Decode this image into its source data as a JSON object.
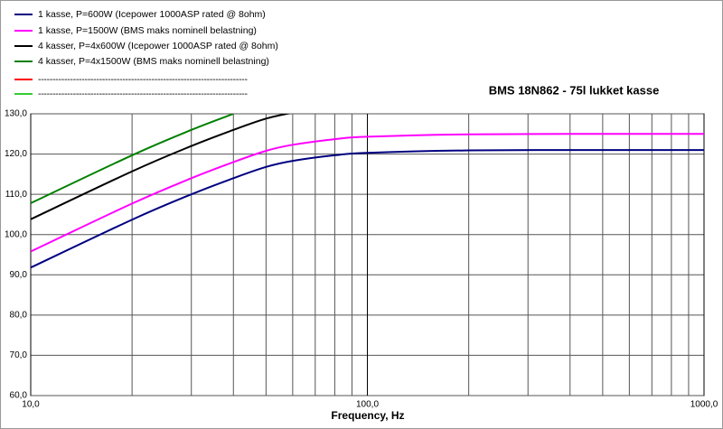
{
  "chart_data": {
    "type": "line",
    "title": "BMS 18N862 - 75l lukket kasse",
    "x_label": "Frequency, Hz",
    "log_x": true,
    "grid": true,
    "x": [
      10,
      20,
      30,
      40,
      50,
      60,
      80,
      100,
      200,
      500,
      1000
    ],
    "series": [
      {
        "name": "1 kasse, P=600W (Icepower 1000ASP rated @ 8ohm)",
        "color": "#000080",
        "values": [
          91.8,
          103.7,
          110,
          114,
          116.8,
          118.3,
          119.7,
          120.3,
          120.9,
          121,
          121
        ]
      },
      {
        "name": "1 kasse, P=1500W (BMS maks nominell belastning)",
        "color": "#ff00ff",
        "values": [
          95.8,
          107.7,
          114,
          118,
          120.8,
          122.3,
          123.7,
          124.3,
          124.9,
          125,
          125
        ]
      },
      {
        "name": "4 kasser, P=4x600W (Icepower 1000ASP rated @ 8ohm)",
        "color": "#000000",
        "values": [
          103.8,
          115.7,
          122,
          126,
          128.8,
          130.3,
          null,
          null,
          null,
          null,
          null
        ]
      },
      {
        "name": "4 kasser, P=4x1500W (BMS maks nominell belastning)",
        "color": "#008000",
        "values": [
          107.8,
          119.7,
          126,
          130,
          null,
          null,
          null,
          null,
          null,
          null,
          null
        ]
      },
      {
        "name": "------------------------------------------------------------------------",
        "color": "#ff0000",
        "values": [
          null,
          null,
          null,
          null,
          null,
          null,
          null,
          null,
          null,
          null,
          null
        ]
      },
      {
        "name": "------------------------------------------------------------------------",
        "color": "#33cc33",
        "values": [
          null,
          null,
          null,
          null,
          null,
          null,
          null,
          null,
          null,
          null,
          null
        ]
      }
    ],
    "xlim": [
      10,
      1000
    ],
    "xticks": [
      {
        "value": 10,
        "label": "10,0"
      },
      {
        "value": 100,
        "label": "100,0"
      },
      {
        "value": 1000,
        "label": "1000,0"
      }
    ],
    "x_minor_ticks": [
      20,
      30,
      40,
      50,
      60,
      70,
      80,
      90,
      200,
      300,
      400,
      500,
      600,
      700,
      800,
      900
    ],
    "ylim": [
      60,
      130
    ],
    "yticks": [
      {
        "value": 60,
        "label": "60,0"
      },
      {
        "value": 70,
        "label": "70,0"
      },
      {
        "value": 80,
        "label": "80,0"
      },
      {
        "value": 90,
        "label": "90,0"
      },
      {
        "value": 100,
        "label": "100,0"
      },
      {
        "value": 110,
        "label": "110,0"
      },
      {
        "value": 120,
        "label": "120,0"
      },
      {
        "value": 130,
        "label": "130,0"
      }
    ]
  }
}
